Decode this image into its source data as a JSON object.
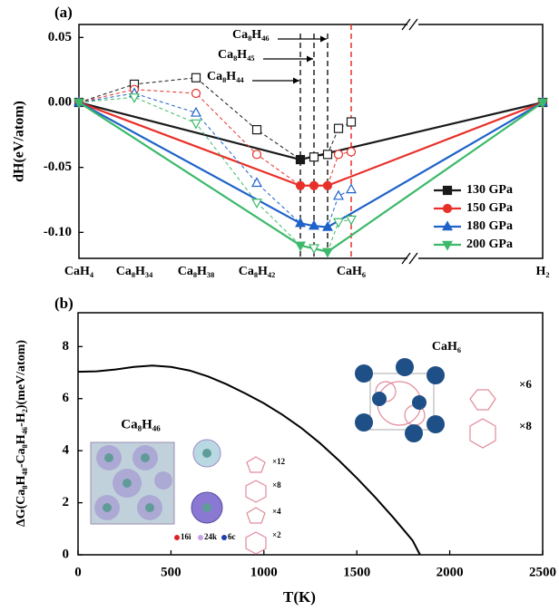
{
  "chart_data": [
    {
      "type": "line",
      "panel_label": "(a)",
      "y_label": "dH(eV/atom)",
      "categories": [
        "CaH₄",
        "Ca₈H₃₄",
        "Ca₈H₃₈",
        "Ca₈H₄₂",
        null,
        null,
        null,
        null,
        "CaH₆",
        "H₂"
      ],
      "ylim": [
        -0.12,
        0.06
      ],
      "yticks": [
        {
          "value": -0.1,
          "label": "-0.10"
        },
        -0.05,
        {
          "value": 0,
          "label": "0.00"
        },
        0.05
      ],
      "series": [
        {
          "name": "130 GPa",
          "color": "#1a1a1a",
          "marker": "square",
          "values": [
            0,
            0.014,
            0.019,
            -0.021,
            -0.044,
            -0.042,
            -0.04,
            -0.02,
            -0.015,
            null
          ],
          "hull_values": [
            0,
            null,
            null,
            null,
            -0.044,
            null,
            null,
            null,
            null,
            0
          ]
        },
        {
          "name": "150 GPa",
          "color": "#e8302a",
          "marker": "circle",
          "values": [
            0,
            0.01,
            0.007,
            -0.04,
            -0.064,
            -0.064,
            -0.064,
            -0.04,
            -0.038,
            null
          ],
          "hull_values": [
            0,
            null,
            null,
            null,
            -0.064,
            -0.064,
            -0.064,
            null,
            null,
            0
          ]
        },
        {
          "name": "180 GPa",
          "color": "#1f62c9",
          "marker": "triangle-up",
          "values": [
            0,
            0.007,
            -0.008,
            -0.062,
            -0.093,
            -0.095,
            -0.096,
            -0.072,
            -0.067,
            null
          ],
          "hull_values": [
            0,
            null,
            null,
            null,
            -0.093,
            -0.095,
            -0.096,
            null,
            null,
            0
          ]
        },
        {
          "name": "200 GPa",
          "color": "#3cb96a",
          "marker": "triangle-down",
          "values": [
            0,
            0.004,
            -0.016,
            -0.077,
            -0.11,
            -0.112,
            -0.115,
            -0.092,
            -0.09,
            null
          ],
          "hull_values": [
            0,
            null,
            null,
            null,
            -0.11,
            null,
            -0.115,
            null,
            null,
            0
          ]
        }
      ],
      "annotations": [
        {
          "text": "Ca₈H₄₄",
          "category_index": 4
        },
        {
          "text": "Ca₈H₄₅",
          "category_index": 5
        },
        {
          "text": "Ca₈H₄₆",
          "category_index": 6
        }
      ],
      "reference_line": {
        "category_index": 8,
        "color": "#e8302a"
      },
      "legend": "lower right"
    },
    {
      "type": "line",
      "panel_label": "(b)",
      "x_label": "T(K)",
      "y_label": "ΔG(Ca₈H₄₈-Ca₈H₄₆-H₂)(meV/atom)",
      "x": [
        0,
        100,
        200,
        300,
        400,
        500,
        600,
        700,
        800,
        900,
        1000,
        1100,
        1200,
        1300,
        1400,
        1500,
        1600,
        1700,
        1800,
        1840
      ],
      "values": [
        7.03,
        7.05,
        7.12,
        7.22,
        7.27,
        7.22,
        7.08,
        6.85,
        6.55,
        6.2,
        5.82,
        5.38,
        4.88,
        4.3,
        3.65,
        2.95,
        2.2,
        1.4,
        0.55,
        0
      ],
      "color": "#000000",
      "xlim": [
        0,
        2500
      ],
      "xticks": [
        0,
        500,
        1000,
        1500,
        2000,
        2500
      ],
      "ylim": [
        0,
        9.3
      ],
      "yticks": [
        0,
        2,
        4,
        6,
        8
      ],
      "annotations": [
        "CaH₆",
        "Ca₈H₄₆",
        "×6",
        "×8",
        "×12",
        "×8",
        "×4",
        "×2",
        "16i",
        "24k",
        "6c"
      ]
    }
  ]
}
